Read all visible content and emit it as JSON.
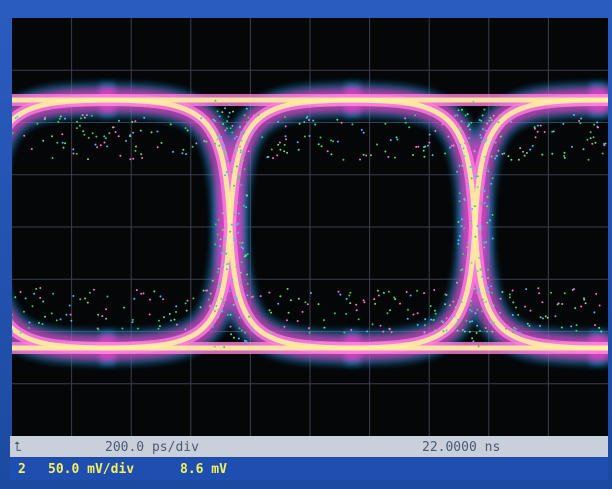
{
  "status_bar": {
    "timebase": "200.0 ps/div",
    "position": "22.0000 ns"
  },
  "channel_bar": {
    "channel": "2",
    "scale": "50.0 mV/div",
    "offset": "8.6 mV"
  }
}
